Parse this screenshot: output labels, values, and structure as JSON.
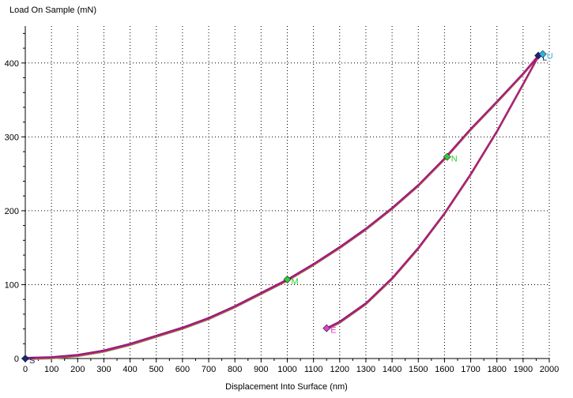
{
  "chart_data": {
    "type": "line",
    "title": "",
    "xlabel": "Displacement Into Surface (nm)",
    "ylabel": "Load On Sample (mN)",
    "xlim": [
      0,
      2000
    ],
    "ylim": [
      0,
      450
    ],
    "xticks": [
      0,
      100,
      200,
      300,
      400,
      500,
      600,
      700,
      800,
      900,
      1000,
      1100,
      1200,
      1300,
      1400,
      1500,
      1600,
      1700,
      1800,
      1900,
      2000
    ],
    "yticks": [
      0,
      100,
      200,
      300,
      400
    ],
    "grid": true,
    "curve_colors": [
      "#7a1f6e",
      "#9aa04c",
      "#b61a7e"
    ],
    "series": [
      {
        "values": [
          {
            "x": 0,
            "y": 0
          },
          {
            "x": 100,
            "y": 1
          },
          {
            "x": 200,
            "y": 4
          },
          {
            "x": 300,
            "y": 10
          },
          {
            "x": 400,
            "y": 19
          },
          {
            "x": 500,
            "y": 30
          },
          {
            "x": 600,
            "y": 41
          },
          {
            "x": 700,
            "y": 54
          },
          {
            "x": 800,
            "y": 70
          },
          {
            "x": 900,
            "y": 88
          },
          {
            "x": 1000,
            "y": 106
          },
          {
            "x": 1100,
            "y": 127
          },
          {
            "x": 1200,
            "y": 150
          },
          {
            "x": 1300,
            "y": 175
          },
          {
            "x": 1400,
            "y": 203
          },
          {
            "x": 1500,
            "y": 234
          },
          {
            "x": 1600,
            "y": 270
          },
          {
            "x": 1700,
            "y": 310
          },
          {
            "x": 1800,
            "y": 347
          },
          {
            "x": 1900,
            "y": 385
          },
          {
            "x": 1960,
            "y": 410
          }
        ]
      },
      {
        "values": [
          {
            "x": 1960,
            "y": 410
          },
          {
            "x": 1900,
            "y": 371
          },
          {
            "x": 1800,
            "y": 307
          },
          {
            "x": 1700,
            "y": 249
          },
          {
            "x": 1600,
            "y": 196
          },
          {
            "x": 1500,
            "y": 149
          },
          {
            "x": 1400,
            "y": 108
          },
          {
            "x": 1300,
            "y": 74
          },
          {
            "x": 1200,
            "y": 49
          },
          {
            "x": 1150,
            "y": 40
          }
        ]
      }
    ],
    "markers": [
      {
        "label": "S",
        "x": 0,
        "y": 0,
        "color": "#1a237e"
      },
      {
        "label": "M",
        "x": 1000,
        "y": 107,
        "color": "#33cc33"
      },
      {
        "label": "N",
        "x": 1610,
        "y": 273,
        "color": "#33cc33"
      },
      {
        "label": "L",
        "x": 1958,
        "y": 410,
        "color": "#1a237e"
      },
      {
        "label": "U",
        "x": 1975,
        "y": 412,
        "color": "#29b6e8"
      },
      {
        "label": "E",
        "x": 1150,
        "y": 41,
        "color": "#e040d0"
      }
    ]
  }
}
